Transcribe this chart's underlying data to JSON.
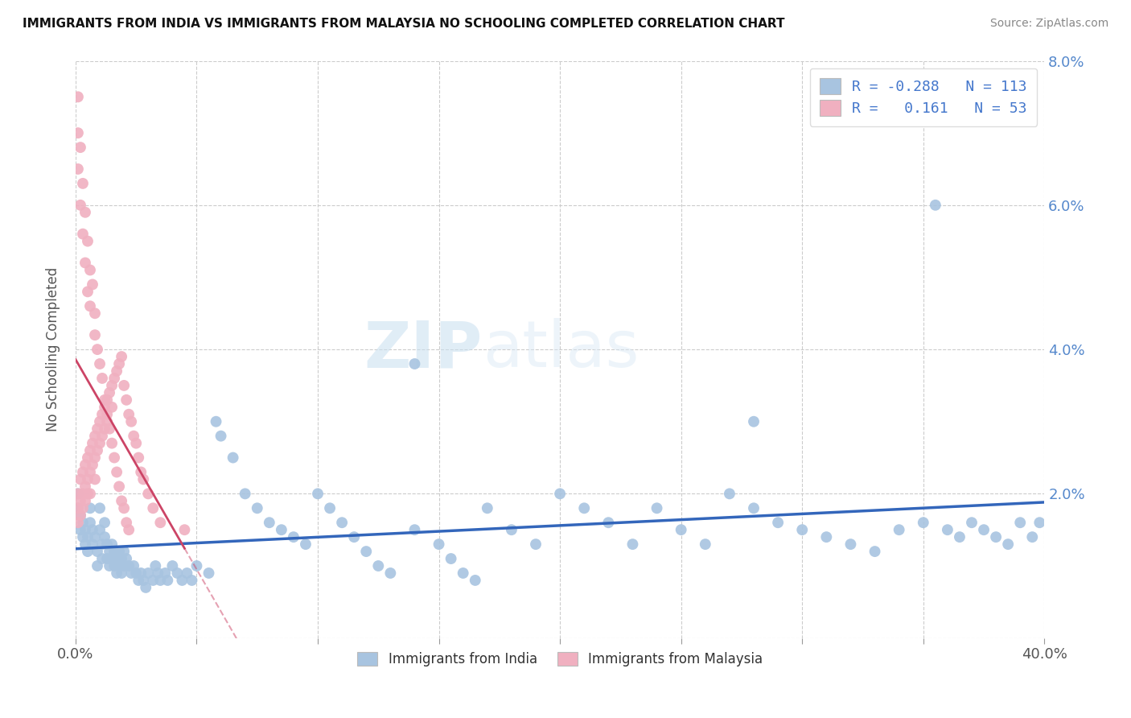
{
  "title": "IMMIGRANTS FROM INDIA VS IMMIGRANTS FROM MALAYSIA NO SCHOOLING COMPLETED CORRELATION CHART",
  "source": "Source: ZipAtlas.com",
  "ylabel": "No Schooling Completed",
  "xlim": [
    0.0,
    0.4
  ],
  "ylim": [
    0.0,
    0.08
  ],
  "xticks": [
    0.0,
    0.05,
    0.1,
    0.15,
    0.2,
    0.25,
    0.3,
    0.35,
    0.4
  ],
  "yticks": [
    0.0,
    0.02,
    0.04,
    0.06,
    0.08
  ],
  "legend_blue_r": "-0.288",
  "legend_blue_n": "113",
  "legend_pink_r": "0.161",
  "legend_pink_n": "53",
  "legend_items": [
    "Immigrants from India",
    "Immigrants from Malaysia"
  ],
  "blue_color": "#a8c4e0",
  "pink_color": "#f0b0c0",
  "blue_line_color": "#3366bb",
  "pink_line_color": "#cc4466",
  "background_color": "#ffffff",
  "grid_color": "#cccccc",
  "watermark_zip": "ZIP",
  "watermark_atlas": "atlas",
  "india_x": [
    0.001,
    0.001,
    0.002,
    0.002,
    0.003,
    0.003,
    0.004,
    0.004,
    0.005,
    0.005,
    0.006,
    0.006,
    0.007,
    0.007,
    0.008,
    0.009,
    0.009,
    0.01,
    0.01,
    0.011,
    0.011,
    0.012,
    0.012,
    0.013,
    0.013,
    0.014,
    0.014,
    0.015,
    0.015,
    0.016,
    0.016,
    0.017,
    0.017,
    0.018,
    0.018,
    0.019,
    0.019,
    0.02,
    0.02,
    0.021,
    0.022,
    0.023,
    0.024,
    0.025,
    0.026,
    0.027,
    0.028,
    0.029,
    0.03,
    0.032,
    0.033,
    0.034,
    0.035,
    0.037,
    0.038,
    0.04,
    0.042,
    0.044,
    0.046,
    0.048,
    0.05,
    0.055,
    0.058,
    0.06,
    0.065,
    0.07,
    0.075,
    0.08,
    0.085,
    0.09,
    0.095,
    0.1,
    0.105,
    0.11,
    0.115,
    0.12,
    0.125,
    0.13,
    0.14,
    0.15,
    0.155,
    0.16,
    0.165,
    0.17,
    0.18,
    0.19,
    0.2,
    0.21,
    0.22,
    0.23,
    0.24,
    0.25,
    0.26,
    0.27,
    0.28,
    0.29,
    0.3,
    0.31,
    0.32,
    0.33,
    0.34,
    0.35,
    0.36,
    0.365,
    0.37,
    0.375,
    0.38,
    0.385,
    0.39,
    0.395,
    0.398,
    0.14,
    0.28,
    0.355
  ],
  "india_y": [
    0.02,
    0.018,
    0.017,
    0.015,
    0.016,
    0.014,
    0.015,
    0.013,
    0.014,
    0.012,
    0.018,
    0.016,
    0.015,
    0.013,
    0.014,
    0.012,
    0.01,
    0.018,
    0.015,
    0.013,
    0.011,
    0.016,
    0.014,
    0.013,
    0.011,
    0.012,
    0.01,
    0.013,
    0.011,
    0.012,
    0.01,
    0.011,
    0.009,
    0.012,
    0.01,
    0.011,
    0.009,
    0.01,
    0.012,
    0.011,
    0.01,
    0.009,
    0.01,
    0.009,
    0.008,
    0.009,
    0.008,
    0.007,
    0.009,
    0.008,
    0.01,
    0.009,
    0.008,
    0.009,
    0.008,
    0.01,
    0.009,
    0.008,
    0.009,
    0.008,
    0.01,
    0.009,
    0.03,
    0.028,
    0.025,
    0.02,
    0.018,
    0.016,
    0.015,
    0.014,
    0.013,
    0.02,
    0.018,
    0.016,
    0.014,
    0.012,
    0.01,
    0.009,
    0.015,
    0.013,
    0.011,
    0.009,
    0.008,
    0.018,
    0.015,
    0.013,
    0.02,
    0.018,
    0.016,
    0.013,
    0.018,
    0.015,
    0.013,
    0.02,
    0.018,
    0.016,
    0.015,
    0.014,
    0.013,
    0.012,
    0.015,
    0.016,
    0.015,
    0.014,
    0.016,
    0.015,
    0.014,
    0.013,
    0.016,
    0.014,
    0.016,
    0.038,
    0.03,
    0.06
  ],
  "malaysia_x": [
    0.001,
    0.001,
    0.001,
    0.002,
    0.002,
    0.002,
    0.003,
    0.003,
    0.003,
    0.004,
    0.004,
    0.004,
    0.005,
    0.005,
    0.005,
    0.006,
    0.006,
    0.006,
    0.007,
    0.007,
    0.008,
    0.008,
    0.008,
    0.009,
    0.009,
    0.01,
    0.01,
    0.011,
    0.011,
    0.012,
    0.012,
    0.013,
    0.013,
    0.014,
    0.015,
    0.015,
    0.016,
    0.017,
    0.018,
    0.019,
    0.02,
    0.021,
    0.022,
    0.023,
    0.024,
    0.025,
    0.026,
    0.027,
    0.028,
    0.03,
    0.032,
    0.035,
    0.045
  ],
  "malaysia_y": [
    0.02,
    0.018,
    0.016,
    0.022,
    0.019,
    0.017,
    0.023,
    0.02,
    0.018,
    0.024,
    0.021,
    0.019,
    0.025,
    0.022,
    0.02,
    0.026,
    0.023,
    0.02,
    0.027,
    0.024,
    0.028,
    0.025,
    0.022,
    0.029,
    0.026,
    0.03,
    0.027,
    0.031,
    0.028,
    0.032,
    0.029,
    0.033,
    0.03,
    0.034,
    0.035,
    0.032,
    0.036,
    0.037,
    0.038,
    0.039,
    0.035,
    0.033,
    0.031,
    0.03,
    0.028,
    0.027,
    0.025,
    0.023,
    0.022,
    0.02,
    0.018,
    0.016,
    0.015
  ],
  "malaysia_extra_x": [
    0.001,
    0.001,
    0.001,
    0.002,
    0.002,
    0.003,
    0.003,
    0.004,
    0.004,
    0.005,
    0.005,
    0.006,
    0.006,
    0.007,
    0.008,
    0.008,
    0.009,
    0.01,
    0.011,
    0.012,
    0.013,
    0.014,
    0.015,
    0.016,
    0.017,
    0.018,
    0.019,
    0.02,
    0.021,
    0.022
  ],
  "malaysia_extra_y": [
    0.075,
    0.07,
    0.065,
    0.068,
    0.06,
    0.063,
    0.056,
    0.059,
    0.052,
    0.055,
    0.048,
    0.051,
    0.046,
    0.049,
    0.045,
    0.042,
    0.04,
    0.038,
    0.036,
    0.033,
    0.031,
    0.029,
    0.027,
    0.025,
    0.023,
    0.021,
    0.019,
    0.018,
    0.016,
    0.015
  ]
}
